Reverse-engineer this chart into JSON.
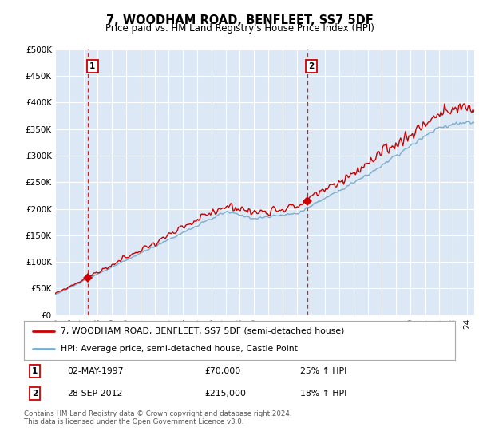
{
  "title": "7, WOODHAM ROAD, BENFLEET, SS7 5DF",
  "subtitle": "Price paid vs. HM Land Registry's House Price Index (HPI)",
  "ylabel_ticks": [
    "£0",
    "£50K",
    "£100K",
    "£150K",
    "£200K",
    "£250K",
    "£300K",
    "£350K",
    "£400K",
    "£450K",
    "£500K"
  ],
  "ytick_vals": [
    0,
    50000,
    100000,
    150000,
    200000,
    250000,
    300000,
    350000,
    400000,
    450000,
    500000
  ],
  "ylim": [
    0,
    500000
  ],
  "xlim_start": 1995.0,
  "xlim_end": 2024.5,
  "sale1_x": 1997.33,
  "sale1_y": 70000,
  "sale1_label": "1",
  "sale1_date": "02-MAY-1997",
  "sale1_price": "£70,000",
  "sale1_hpi": "25% ↑ HPI",
  "sale2_x": 2012.75,
  "sale2_y": 215000,
  "sale2_label": "2",
  "sale2_date": "28-SEP-2012",
  "sale2_price": "£215,000",
  "sale2_hpi": "18% ↑ HPI",
  "legend_line1": "7, WOODHAM ROAD, BENFLEET, SS7 5DF (semi-detached house)",
  "legend_line2": "HPI: Average price, semi-detached house, Castle Point",
  "footer": "Contains HM Land Registry data © Crown copyright and database right 2024.\nThis data is licensed under the Open Government Licence v3.0.",
  "plot_bg_color": "#dce8f5",
  "grid_color": "#ffffff",
  "red_color": "#cc0000",
  "blue_color": "#7aadcf",
  "dashed_color": "#cc0000"
}
